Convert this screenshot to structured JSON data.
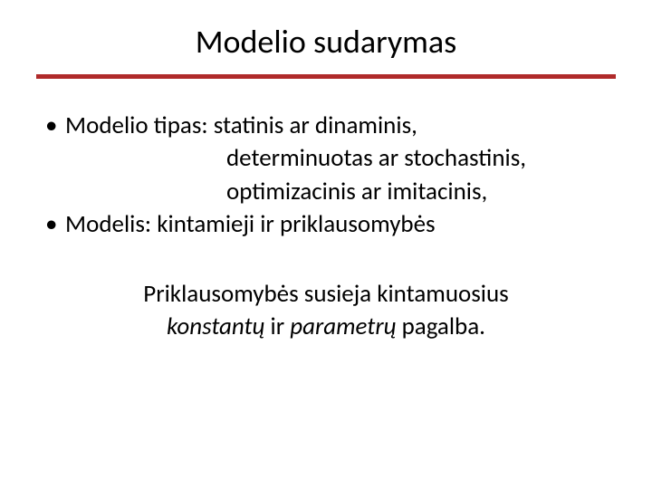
{
  "slide": {
    "title": "Modelio sudarymas",
    "divider_color": "#b02a2a",
    "background_color": "#ffffff",
    "text_color": "#000000",
    "title_fontsize": 36,
    "body_fontsize": 27,
    "bullets": [
      {
        "main": "Modelio tipas: statinis ar dinaminis,",
        "sublines": [
          "determinuotas ar stochastinis,",
          "optimizacinis ar imitacinis,"
        ]
      },
      {
        "main": "Modelis: kintamieji ir priklausomybės",
        "sublines": []
      }
    ],
    "summary_line1": "Priklausomybės susieja kintamuosius",
    "summary_italic1": "konstantų",
    "summary_mid": " ir ",
    "summary_italic2": "parametrų",
    "summary_end": " pagalba."
  }
}
